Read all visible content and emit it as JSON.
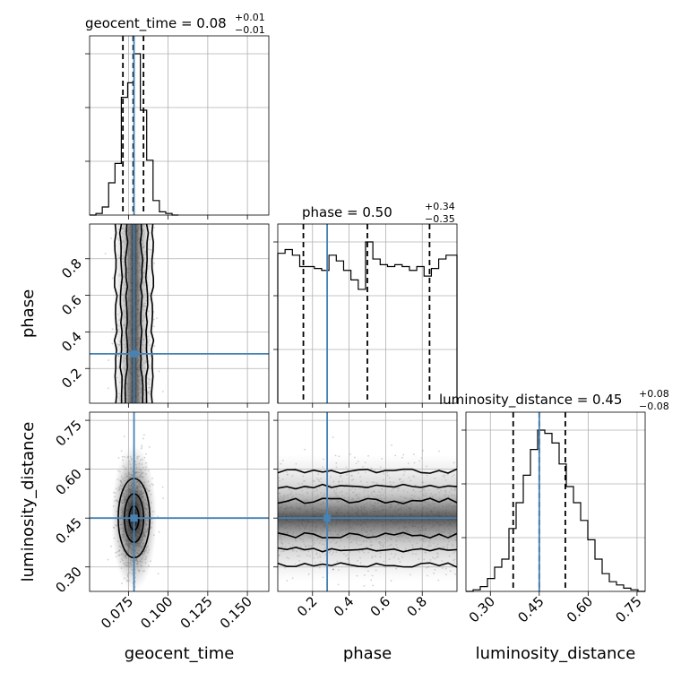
{
  "chart_data": {
    "type": "corner",
    "parameters": [
      "geocent_time",
      "phase",
      "luminosity_distance"
    ],
    "colors": {
      "truth": "#4682b4",
      "quantile": "#000000",
      "grid": "#b0b0b0",
      "density": "#000000"
    },
    "titles": [
      {
        "name": "geocent_time",
        "label": "geocent_time = 0.08",
        "plus": "+0.01",
        "minus": "−0.01"
      },
      {
        "name": "phase",
        "label": "phase = 0.50",
        "plus": "+0.34",
        "minus": "−0.35"
      },
      {
        "name": "luminosity_distance",
        "label": "luminosity_distance = 0.45",
        "plus": "+0.08",
        "minus": "−0.08"
      }
    ],
    "axis_labels": {
      "geocent_time": "geocent_time",
      "phase": "phase",
      "luminosity_distance": "luminosity_distance"
    },
    "ranges": {
      "geocent_time": [
        0.0505,
        0.1635
      ],
      "phase": [
        0.01,
        0.99
      ],
      "luminosity_distance": [
        0.225,
        0.775
      ]
    },
    "ticks": {
      "geocent_time": [
        0.075,
        0.1,
        0.125,
        0.15
      ],
      "phase": [
        0.2,
        0.4,
        0.6,
        0.8
      ],
      "luminosity_distance": [
        0.3,
        0.45,
        0.6,
        0.75
      ]
    },
    "tick_labels": {
      "geocent_time": [
        "0.075",
        "0.100",
        "0.125",
        "0.150"
      ],
      "phase": [
        "0.2",
        "0.4",
        "0.6",
        "0.8"
      ],
      "luminosity_distance": [
        "0.30",
        "0.45",
        "0.60",
        "0.75"
      ]
    },
    "truths": {
      "geocent_time": 0.0785,
      "phase": 0.28,
      "luminosity_distance": 0.45
    },
    "quantiles": {
      "geocent_time": [
        0.0715,
        0.078,
        0.0845
      ],
      "phase": [
        0.15,
        0.5,
        0.84
      ],
      "luminosity_distance": [
        0.37,
        0.45,
        0.53
      ]
    },
    "histograms": {
      "geocent_time": {
        "bins": [
          0.0505,
          0.0545,
          0.0585,
          0.0625,
          0.0665,
          0.0705,
          0.0745,
          0.0785,
          0.0825,
          0.0865,
          0.0905,
          0.0945,
          0.0985,
          0.1025,
          0.1065
        ],
        "counts": [
          0,
          0.01,
          0.05,
          0.2,
          0.32,
          0.73,
          0.82,
          1.0,
          0.65,
          0.34,
          0.09,
          0.02,
          0.01,
          0
        ]
      },
      "phase": {
        "bins": [
          0.01,
          0.05,
          0.09,
          0.13,
          0.17,
          0.21,
          0.25,
          0.29,
          0.33,
          0.37,
          0.41,
          0.45,
          0.49,
          0.53,
          0.57,
          0.61,
          0.65,
          0.69,
          0.73,
          0.77,
          0.81,
          0.85,
          0.89,
          0.93,
          0.97,
          0.99
        ],
        "counts": [
          0.79,
          0.81,
          0.78,
          0.72,
          0.72,
          0.71,
          0.7,
          0.78,
          0.75,
          0.7,
          0.65,
          0.6,
          0.85,
          0.76,
          0.73,
          0.72,
          0.73,
          0.72,
          0.7,
          0.72,
          0.67,
          0.71,
          0.76,
          0.78,
          0.78
        ]
      },
      "luminosity_distance": {
        "bins": [
          0.225,
          0.247,
          0.269,
          0.291,
          0.313,
          0.335,
          0.357,
          0.379,
          0.401,
          0.423,
          0.445,
          0.467,
          0.489,
          0.511,
          0.533,
          0.555,
          0.577,
          0.599,
          0.621,
          0.643,
          0.665,
          0.687,
          0.709,
          0.731,
          0.753,
          0.775
        ],
        "counts": [
          0,
          0.01,
          0.03,
          0.08,
          0.15,
          0.2,
          0.39,
          0.55,
          0.72,
          0.88,
          1.0,
          0.98,
          0.92,
          0.79,
          0.65,
          0.55,
          0.44,
          0.32,
          0.2,
          0.11,
          0.06,
          0.04,
          0.02,
          0.01,
          0
        ]
      }
    },
    "density_2d": [
      {
        "x": "geocent_time",
        "y": "phase",
        "x_mean": 0.0785,
        "x_sigma": 0.0048,
        "y_mean": 0.5,
        "y_sigma": 0.29,
        "y_uniform": true
      },
      {
        "x": "geocent_time",
        "y": "luminosity_distance",
        "x_mean": 0.0785,
        "x_sigma": 0.0048,
        "y_mean": 0.45,
        "y_sigma": 0.075,
        "y_uniform": false
      },
      {
        "x": "phase",
        "y": "luminosity_distance",
        "x_mean": 0.5,
        "x_sigma": 0.29,
        "y_mean": 0.45,
        "y_sigma": 0.075,
        "x_uniform": true
      }
    ],
    "grid": true
  }
}
